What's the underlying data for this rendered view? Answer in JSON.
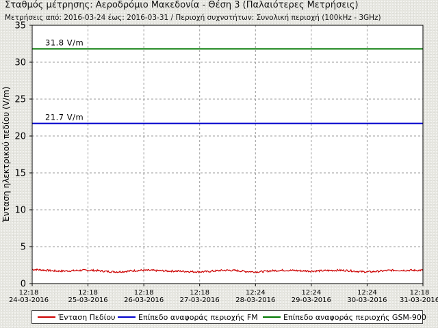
{
  "header": {
    "title": "Σταθμός μέτρησης: Αεροδρόμιο Μακεδονία - Θέση 3 (Παλαιότερες Μετρήσεις)",
    "subtitle": "Μετρήσεις από: 2016-03-24 έως: 2016-03-31 / Περιοχή συχνοτήτων: Συνολική περιοχή (100kHz - 3GHz)"
  },
  "colors": {
    "field": "#cc0000",
    "fm": "#0000cc",
    "gsm": "#007700"
  },
  "chart_data": {
    "type": "line",
    "title": "Σταθμός μέτρησης: Αεροδρόμιο Μακεδονία - Θέση 3 (Παλαιότερες Μετρήσεις)",
    "xlabel": "",
    "ylabel": "Ένταση ηλεκτρικού πεδίου (V/m)",
    "ylim": [
      0,
      35
    ],
    "yticks": [
      "0",
      "5",
      "10",
      "15",
      "20",
      "25",
      "30",
      "35"
    ],
    "x_ticks": [
      {
        "time": "12:18",
        "date": "24-03-2016"
      },
      {
        "time": "12:18",
        "date": "25-03-2016"
      },
      {
        "time": "12:18",
        "date": "26-03-2016"
      },
      {
        "time": "12:18",
        "date": "27-03-2016"
      },
      {
        "time": "12:24",
        "date": "28-03-2016"
      },
      {
        "time": "12:24",
        "date": "29-03-2016"
      },
      {
        "time": "12:24",
        "date": "30-03-2016"
      },
      {
        "time": "12:18",
        "date": "31-03-2016"
      }
    ],
    "grid": true,
    "legend_position": "bottom",
    "reference_lines": [
      {
        "name": "Επίπεδο αναφοράς περιοχής GSM-900",
        "value": 31.8,
        "label": "31.8 V/m"
      },
      {
        "name": "Επίπεδο αναφοράς περιοχής FM",
        "value": 21.7,
        "label": "21.7 V/m"
      }
    ],
    "series": [
      {
        "name": "Ένταση Πεδίου",
        "x": [
          "2016-03-24",
          "2016-03-24",
          "2016-03-25",
          "2016-03-25",
          "2016-03-26",
          "2016-03-26",
          "2016-03-27",
          "2016-03-27",
          "2016-03-28",
          "2016-03-28",
          "2016-03-29",
          "2016-03-29",
          "2016-03-30",
          "2016-03-30",
          "2016-03-31"
        ],
        "values": [
          1.9,
          1.7,
          1.8,
          1.6,
          1.8,
          1.7,
          1.6,
          1.8,
          1.6,
          1.8,
          1.7,
          1.8,
          1.6,
          1.8,
          1.8
        ]
      }
    ]
  },
  "legend": {
    "items": [
      {
        "label": "Ένταση Πεδίου"
      },
      {
        "label": "Επίπεδο αναφοράς περιοχής FM"
      },
      {
        "label": "Επίπεδο αναφοράς περιοχής GSM-900"
      }
    ]
  }
}
